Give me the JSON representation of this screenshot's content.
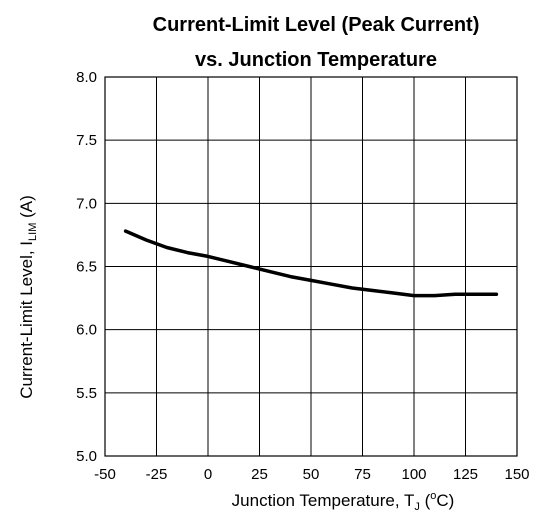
{
  "chart_data": {
    "type": "line",
    "title_line1": "Current-Limit Level (Peak Current)",
    "title_line2": "vs. Junction Temperature",
    "xlabel": {
      "prefix": "Junction Temperature, T",
      "sub": "J",
      "mid": " (",
      "sup": "o",
      "suffix": "C)"
    },
    "ylabel": {
      "prefix": "Current-Limit Level, I",
      "sub": "LIM",
      "suffix": " (A)"
    },
    "xlim": [
      -50,
      150
    ],
    "ylim": [
      5.0,
      8.0
    ],
    "xticks": [
      "-50",
      "-25",
      "0",
      "25",
      "50",
      "75",
      "100",
      "125",
      "150"
    ],
    "yticks": [
      "5.0",
      "5.5",
      "6.0",
      "6.5",
      "7.0",
      "7.5",
      "8.0"
    ],
    "grid": true,
    "series": [
      {
        "x": [
          -40,
          -30,
          -20,
          -10,
          0,
          10,
          20,
          30,
          40,
          50,
          60,
          70,
          80,
          90,
          100,
          110,
          120,
          130,
          140
        ],
        "y": [
          6.78,
          6.71,
          6.65,
          6.61,
          6.58,
          6.54,
          6.5,
          6.46,
          6.42,
          6.39,
          6.36,
          6.33,
          6.31,
          6.29,
          6.27,
          6.27,
          6.28,
          6.28,
          6.28
        ]
      }
    ]
  }
}
